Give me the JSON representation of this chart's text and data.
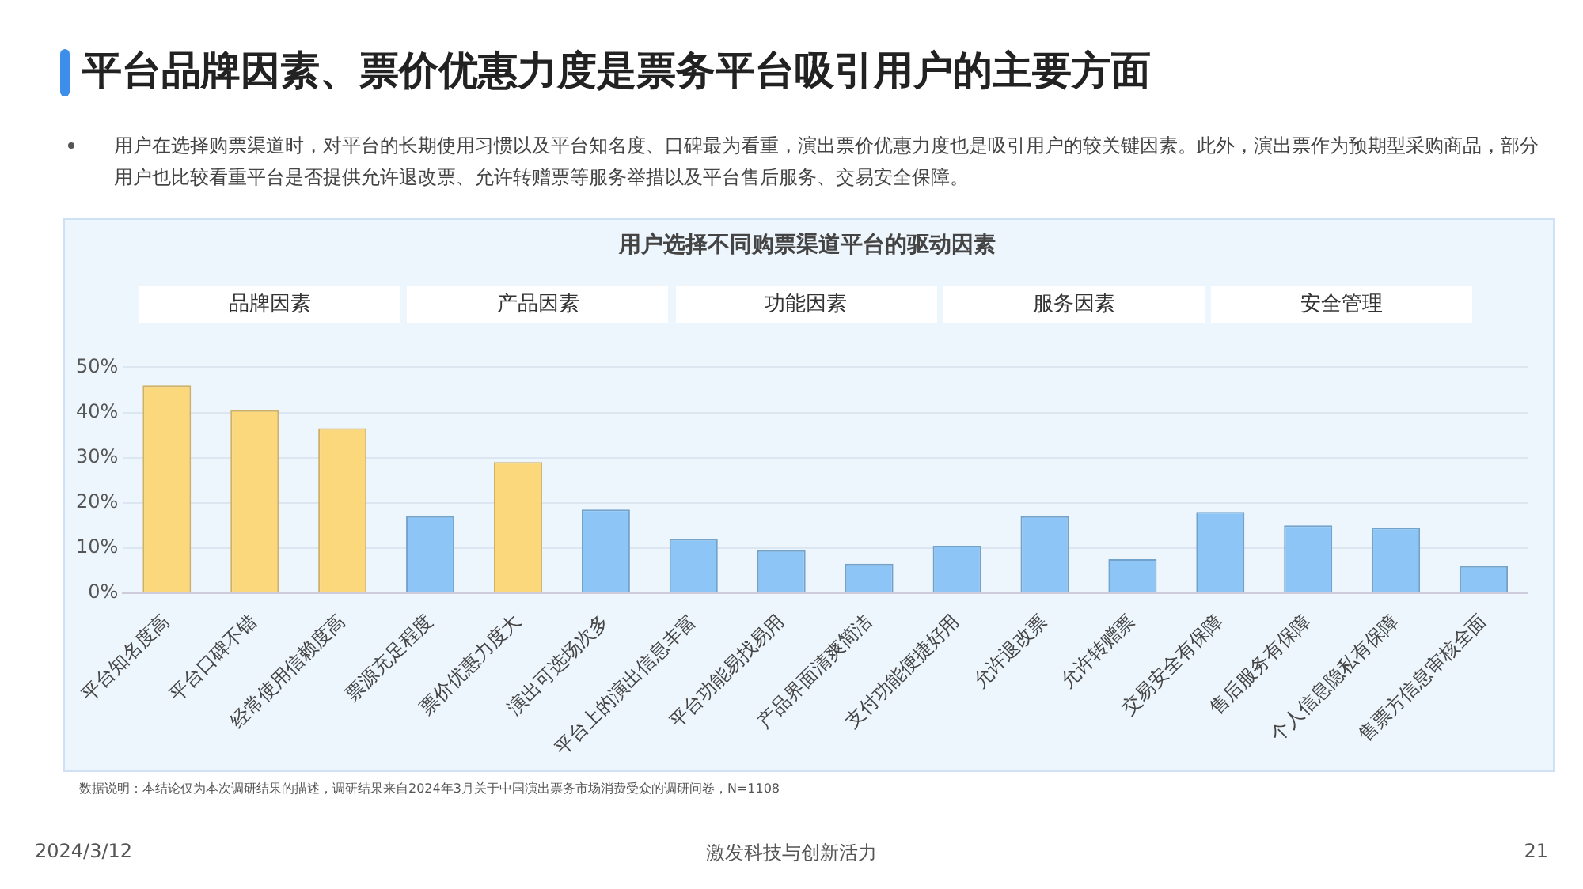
{
  "chart_data": {
    "type": "bar",
    "title": "平台品牌因素、票价优惠力度是票务平台吸引用户的主要方面",
    "subtitle": "用户在选择购票渠道时，对平台的长期使用习惯以及平台知名度、口碑最为看重，演出票价优惠力度也是吸引用户的较关键因素。此外，演出票作为预期型采购商品，部分用户也比较看重平台是否提供允许退改票、允许转赠票等服务举措以及平台售后服务、交易安全保障。",
    "categories": [
      "平台知名度高",
      "平台口碑不错",
      "经常使用信赖度高",
      "票源充足程度",
      "票价优惠力度大",
      "演出可选场次多",
      "平台上的演出信息丰富",
      "平台功能易找易用",
      "产品界面清爽简洁",
      "支付功能便捷好用",
      "允许退改票",
      "允许转赠票",
      "交易安全有保障",
      "售后服务有保障",
      "个人信息隐私有保障",
      "售票方信息审核全面"
    ],
    "values": [
      46,
      40.5,
      36.5,
      17,
      29,
      18.5,
      12,
      9.5,
      6.5,
      10.5,
      17,
      7.5,
      18,
      15,
      14.5,
      6
    ],
    "colors": [
      "#fbd87c",
      "#fbd87c",
      "#fbd87c",
      "#8cc5f6",
      "#fbd87c",
      "#8cc5f6",
      "#8cc5f6",
      "#8cc5f6",
      "#8cc5f6",
      "#8cc5f6",
      "#8cc5f6",
      "#8cc5f6",
      "#8cc5f6",
      "#8cc5f6",
      "#8cc5f6",
      "#8cc5f6"
    ],
    "ylim": [
      0,
      50
    ],
    "yticks": [
      {
        "value": 0,
        "label": "0%"
      },
      {
        "value": 10,
        "label": "10%"
      },
      {
        "value": 20,
        "label": "20%"
      },
      {
        "value": 30,
        "label": "30%"
      },
      {
        "value": 40,
        "label": "40%"
      },
      {
        "value": 50,
        "label": "50%"
      }
    ],
    "grid": "y",
    "legend": false,
    "annotations": [
      "用户选择不同购票渠道平台的驱动因素",
      "品牌因素",
      "产品因素",
      "功能因素",
      "服务因素",
      "安全管理",
      "数据说明：本结论仅为本次调研结果的描述，调研结果来自2024年3月关于中国演出票务市场消费受众的调研问卷，N=1108",
      "2024/3/12",
      "激发科技与创新活力",
      "21"
    ]
  }
}
